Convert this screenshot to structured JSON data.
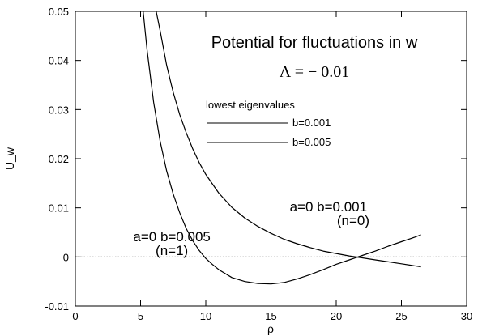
{
  "chart_data": {
    "type": "line",
    "title": "Potential for fluctuations in w",
    "subtitle": "Λ = − 0.01",
    "xlabel": "ρ",
    "ylabel": "U_w",
    "xlim": [
      0,
      30
    ],
    "ylim": [
      -0.01,
      0.05
    ],
    "x_ticks": [
      0,
      5,
      10,
      15,
      20,
      25,
      30
    ],
    "y_ticks": [
      -0.01,
      0,
      0.01,
      0.02,
      0.03,
      0.04,
      0.05
    ],
    "x_tick_labels": [
      "0",
      "5",
      "10",
      "15",
      "20",
      "25",
      "30"
    ],
    "y_tick_labels": [
      "-0.01",
      "0",
      "0.01",
      "0.02",
      "0.03",
      "0.04",
      "0.05"
    ],
    "grid": false,
    "zero_line": true,
    "series": [
      {
        "name": "a=0 b=0.005",
        "x": [
          5.2,
          5.5,
          6.0,
          6.5,
          7.0,
          7.5,
          8.0,
          8.5,
          9.0,
          9.5,
          10.0,
          10.5,
          11.0,
          12.0,
          13.0,
          14.0,
          15.0,
          16.0,
          17.0,
          18.0,
          19.0,
          20.0,
          21.0,
          22.0,
          23.0,
          24.0,
          25.0,
          26.0,
          26.5
        ],
        "y": [
          0.05,
          0.042,
          0.0315,
          0.0235,
          0.0175,
          0.0128,
          0.009,
          0.0058,
          0.0033,
          0.0013,
          -0.0003,
          -0.0015,
          -0.0026,
          -0.0042,
          -0.005,
          -0.0054,
          -0.0055,
          -0.0052,
          -0.0045,
          -0.0036,
          -0.0026,
          -0.0015,
          -0.0006,
          0.0003,
          0.0012,
          0.0022,
          0.0031,
          0.004,
          0.0045
        ]
      },
      {
        "name": "a=0 b=0.001",
        "x": [
          6.2,
          6.5,
          7.0,
          7.5,
          8.0,
          8.5,
          9.0,
          9.5,
          10.0,
          11.0,
          12.0,
          13.0,
          14.0,
          15.0,
          16.0,
          17.0,
          18.0,
          19.0,
          20.0,
          21.0,
          22.0,
          23.0,
          24.0,
          25.0,
          26.0,
          26.5
        ],
        "y": [
          0.05,
          0.046,
          0.039,
          0.0335,
          0.029,
          0.0253,
          0.022,
          0.0192,
          0.0168,
          0.013,
          0.0101,
          0.0079,
          0.0062,
          0.0048,
          0.0036,
          0.0027,
          0.0019,
          0.0012,
          0.0007,
          0.0002,
          -0.0002,
          -0.0006,
          -0.001,
          -0.0014,
          -0.0018,
          -0.002
        ]
      }
    ],
    "annotations": [
      {
        "text": "a=0  b=0.001",
        "x": 19.4,
        "y": 0.0093
      },
      {
        "text": "(n=0)",
        "x": 21.3,
        "y": 0.0065
      },
      {
        "text": "a=0  b=0.005",
        "x": 7.4,
        "y": 0.0032
      },
      {
        "text": "(n=1)",
        "x": 7.4,
        "y": 0.0004
      }
    ],
    "legend": {
      "title": "lowest  eigenvalues",
      "placement": "top-center",
      "entries": [
        "b=0.001",
        "b=0.005"
      ]
    }
  }
}
